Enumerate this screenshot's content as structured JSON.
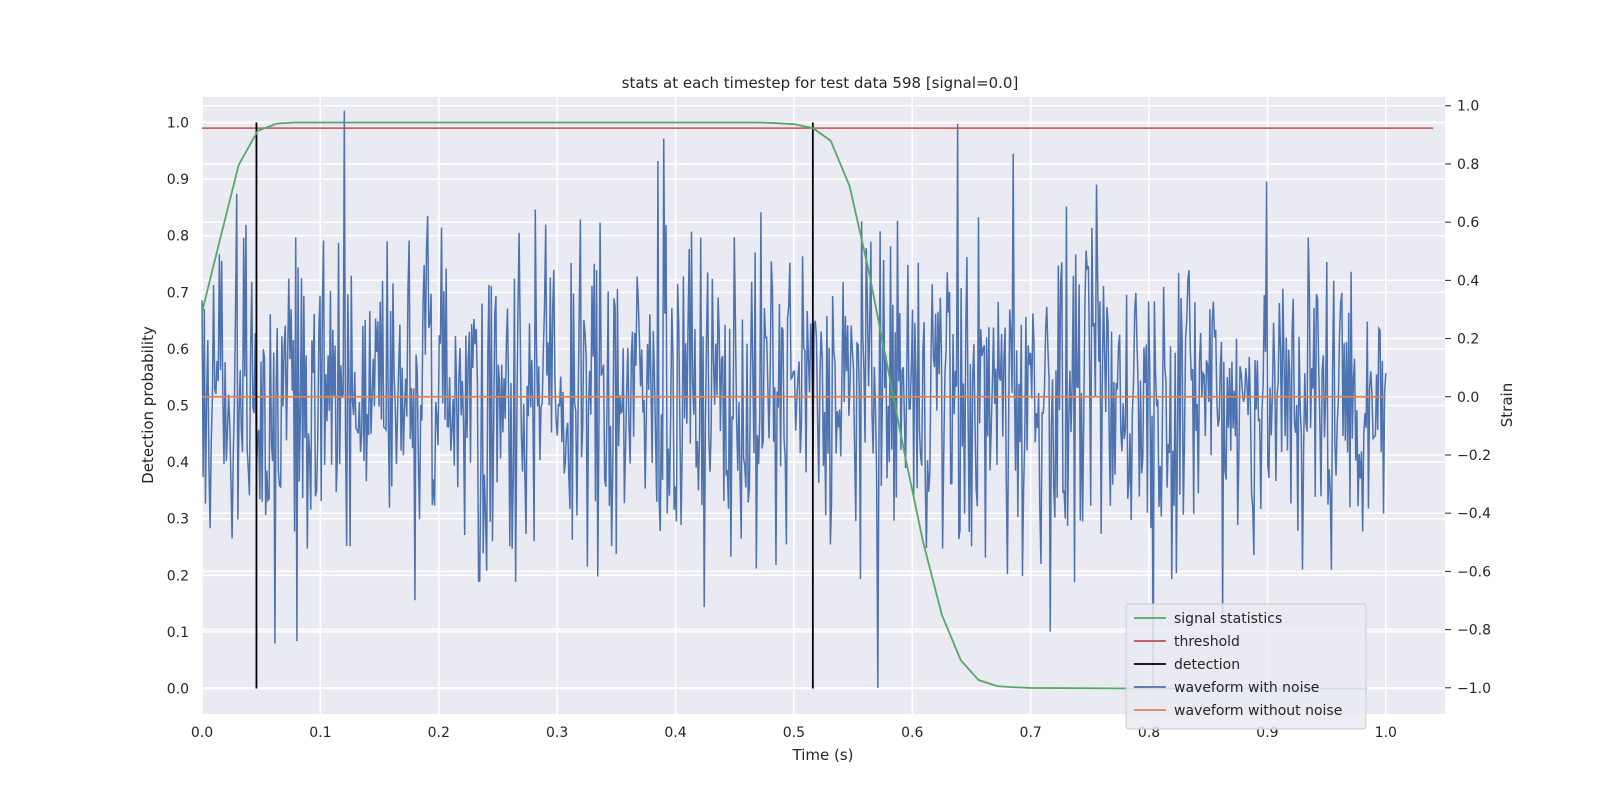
{
  "chart_data": {
    "type": "line",
    "title": "stats at each timestep for test data 598 [signal=0.0]",
    "xlabel": "Time (s)",
    "ylabel_left": "Detection probability",
    "ylabel_right": "Strain",
    "xlim": [
      0.0,
      1.05
    ],
    "ylim_left": [
      -0.045,
      1.045
    ],
    "ylim_right": [
      -1.09,
      1.03
    ],
    "x_ticks": [
      "0.0",
      "0.1",
      "0.2",
      "0.3",
      "0.4",
      "0.5",
      "0.6",
      "0.7",
      "0.8",
      "0.9",
      "1.0"
    ],
    "y_ticks_left": [
      "0.0",
      "0.1",
      "0.2",
      "0.3",
      "0.4",
      "0.5",
      "0.6",
      "0.7",
      "0.8",
      "0.9",
      "1.0"
    ],
    "y_ticks_right": [
      "−1.0",
      "−0.8",
      "−0.6",
      "−0.4",
      "−0.2",
      "0.0",
      "0.2",
      "0.4",
      "0.6",
      "0.8",
      "1.0"
    ],
    "grid": true,
    "legend_position": "lower-right",
    "series": [
      {
        "name": "signal statistics",
        "axis": "left",
        "color": "#55a868",
        "x": [
          0.0,
          0.016,
          0.031,
          0.047,
          0.063,
          0.078,
          0.1,
          0.2,
          0.3,
          0.4,
          0.469,
          0.484,
          0.5,
          0.516,
          0.531,
          0.547,
          0.563,
          0.578,
          0.594,
          0.609,
          0.625,
          0.641,
          0.656,
          0.672,
          0.688,
          0.7,
          0.8,
          0.9,
          0.984
        ],
        "y": [
          0.665,
          0.8,
          0.925,
          0.985,
          0.998,
          1.0,
          1.0,
          1.0,
          1.0,
          1.0,
          1.0,
          0.999,
          0.997,
          0.99,
          0.968,
          0.888,
          0.74,
          0.58,
          0.41,
          0.26,
          0.13,
          0.05,
          0.015,
          0.004,
          0.002,
          0.001,
          0.0,
          0.0,
          0.0
        ]
      },
      {
        "name": "threshold",
        "axis": "left",
        "color": "#c44e52",
        "x": [
          0.0,
          1.04
        ],
        "y": [
          0.99,
          0.99
        ]
      },
      {
        "name": "detection",
        "axis": "left",
        "color": "#000000",
        "vlines": [
          0.046,
          0.516
        ],
        "y": [
          0.0,
          1.0
        ]
      },
      {
        "name": "waveform with noise",
        "axis": "right",
        "color": "#4c72b0",
        "samples": 1024,
        "x_range": [
          0.0,
          1.0
        ],
        "y_range": [
          -1.0,
          1.0
        ]
      },
      {
        "name": "waveform without noise",
        "axis": "right",
        "color": "#dd8452",
        "x": [
          0.0,
          1.0
        ],
        "y": [
          0.0,
          0.0
        ]
      }
    ]
  }
}
